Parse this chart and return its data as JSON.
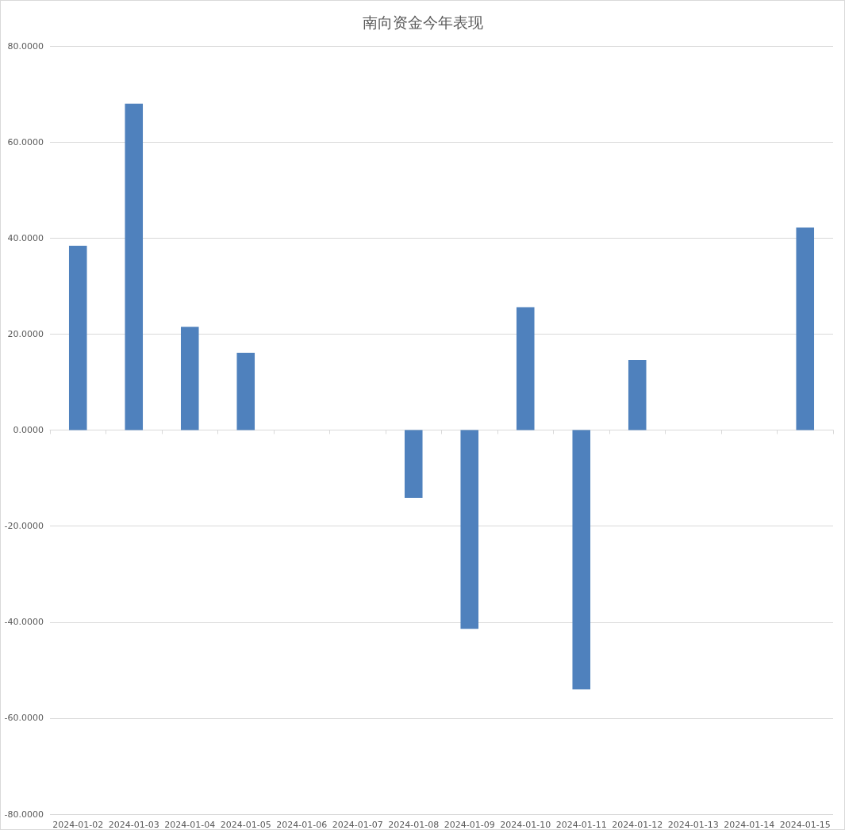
{
  "chart_data": {
    "type": "bar",
    "title": "南向资金今年表现",
    "categories": [
      "2024-01-02",
      "2024-01-03",
      "2024-01-04",
      "2024-01-05",
      "2024-01-06",
      "2024-01-07",
      "2024-01-08",
      "2024-01-09",
      "2024-01-10",
      "2024-01-11",
      "2024-01-12",
      "2024-01-13",
      "2024-01-14",
      "2024-01-15"
    ],
    "values": [
      38.4,
      68.0,
      21.5,
      16.1,
      null,
      null,
      -14.1,
      -41.4,
      25.6,
      -54.0,
      14.6,
      null,
      null,
      42.2
    ],
    "color": "#4f81bd",
    "ylim": [
      -80,
      80
    ],
    "yticks": [
      {
        "value": -80,
        "label": "-80.0000"
      },
      {
        "value": -60,
        "label": "-60.0000"
      },
      {
        "value": -40,
        "label": "-40.0000"
      },
      {
        "value": -20,
        "label": "-20.0000"
      },
      {
        "value": 0,
        "label": "0.0000"
      },
      {
        "value": 20,
        "label": "20.0000"
      },
      {
        "value": 40,
        "label": "40.0000"
      },
      {
        "value": 60,
        "label": "60.0000"
      },
      {
        "value": 80,
        "label": "80.0000"
      }
    ],
    "grid": "y"
  }
}
